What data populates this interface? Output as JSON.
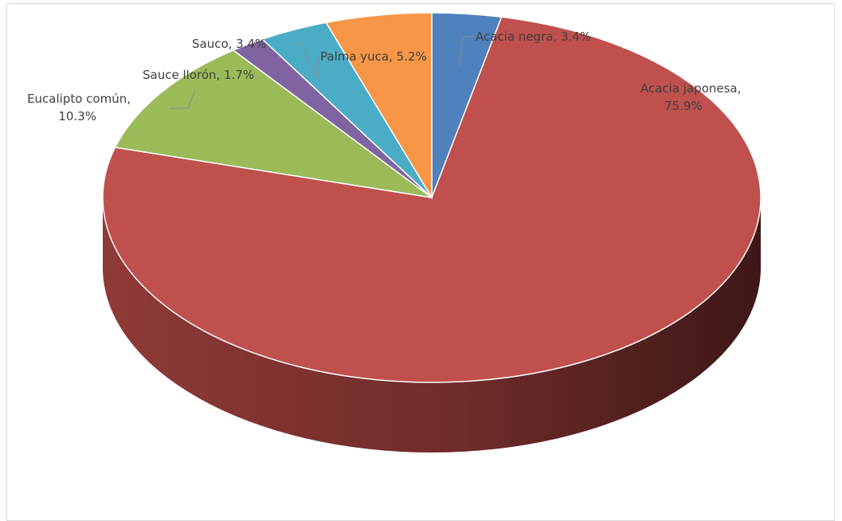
{
  "chart_data": {
    "type": "pie",
    "style": "3d",
    "title": "",
    "slices": [
      {
        "name": "Acacia negra",
        "value": 3.4,
        "label": "Acacia negra, 3.4%",
        "label_lines": [
          "Acacia negra, 3.4%"
        ],
        "color": "#4f81bd"
      },
      {
        "name": "Acacia japonesa",
        "value": 75.9,
        "label": "Acacia japonesa, 75.9%",
        "label_lines": [
          "Acacia japonesa,",
          "75.9%"
        ],
        "color": "#c0504d"
      },
      {
        "name": "Eucalipto común",
        "value": 10.3,
        "label": "Eucalipto común, 10.3%",
        "label_lines": [
          "Eucalipto común,",
          "10.3%"
        ],
        "color": "#9bbb59"
      },
      {
        "name": "Sauce llorón",
        "value": 1.7,
        "label": "Sauce llorón, 1.7%",
        "label_lines": [
          "Sauce llorón, 1.7%"
        ],
        "color": "#8064a2"
      },
      {
        "name": "Sauco",
        "value": 3.4,
        "label": "Sauco, 3.4%",
        "label_lines": [
          "Sauco, 3.4%"
        ],
        "color": "#4bacc6"
      },
      {
        "name": "Palma yuca",
        "value": 5.2,
        "label": "Palma yuca, 5.2%",
        "label_lines": [
          "Palma yuca, 5.2%"
        ],
        "color": "#f79646"
      }
    ],
    "start_angle_deg": 0,
    "direction": "clockwise",
    "legend": "none"
  }
}
